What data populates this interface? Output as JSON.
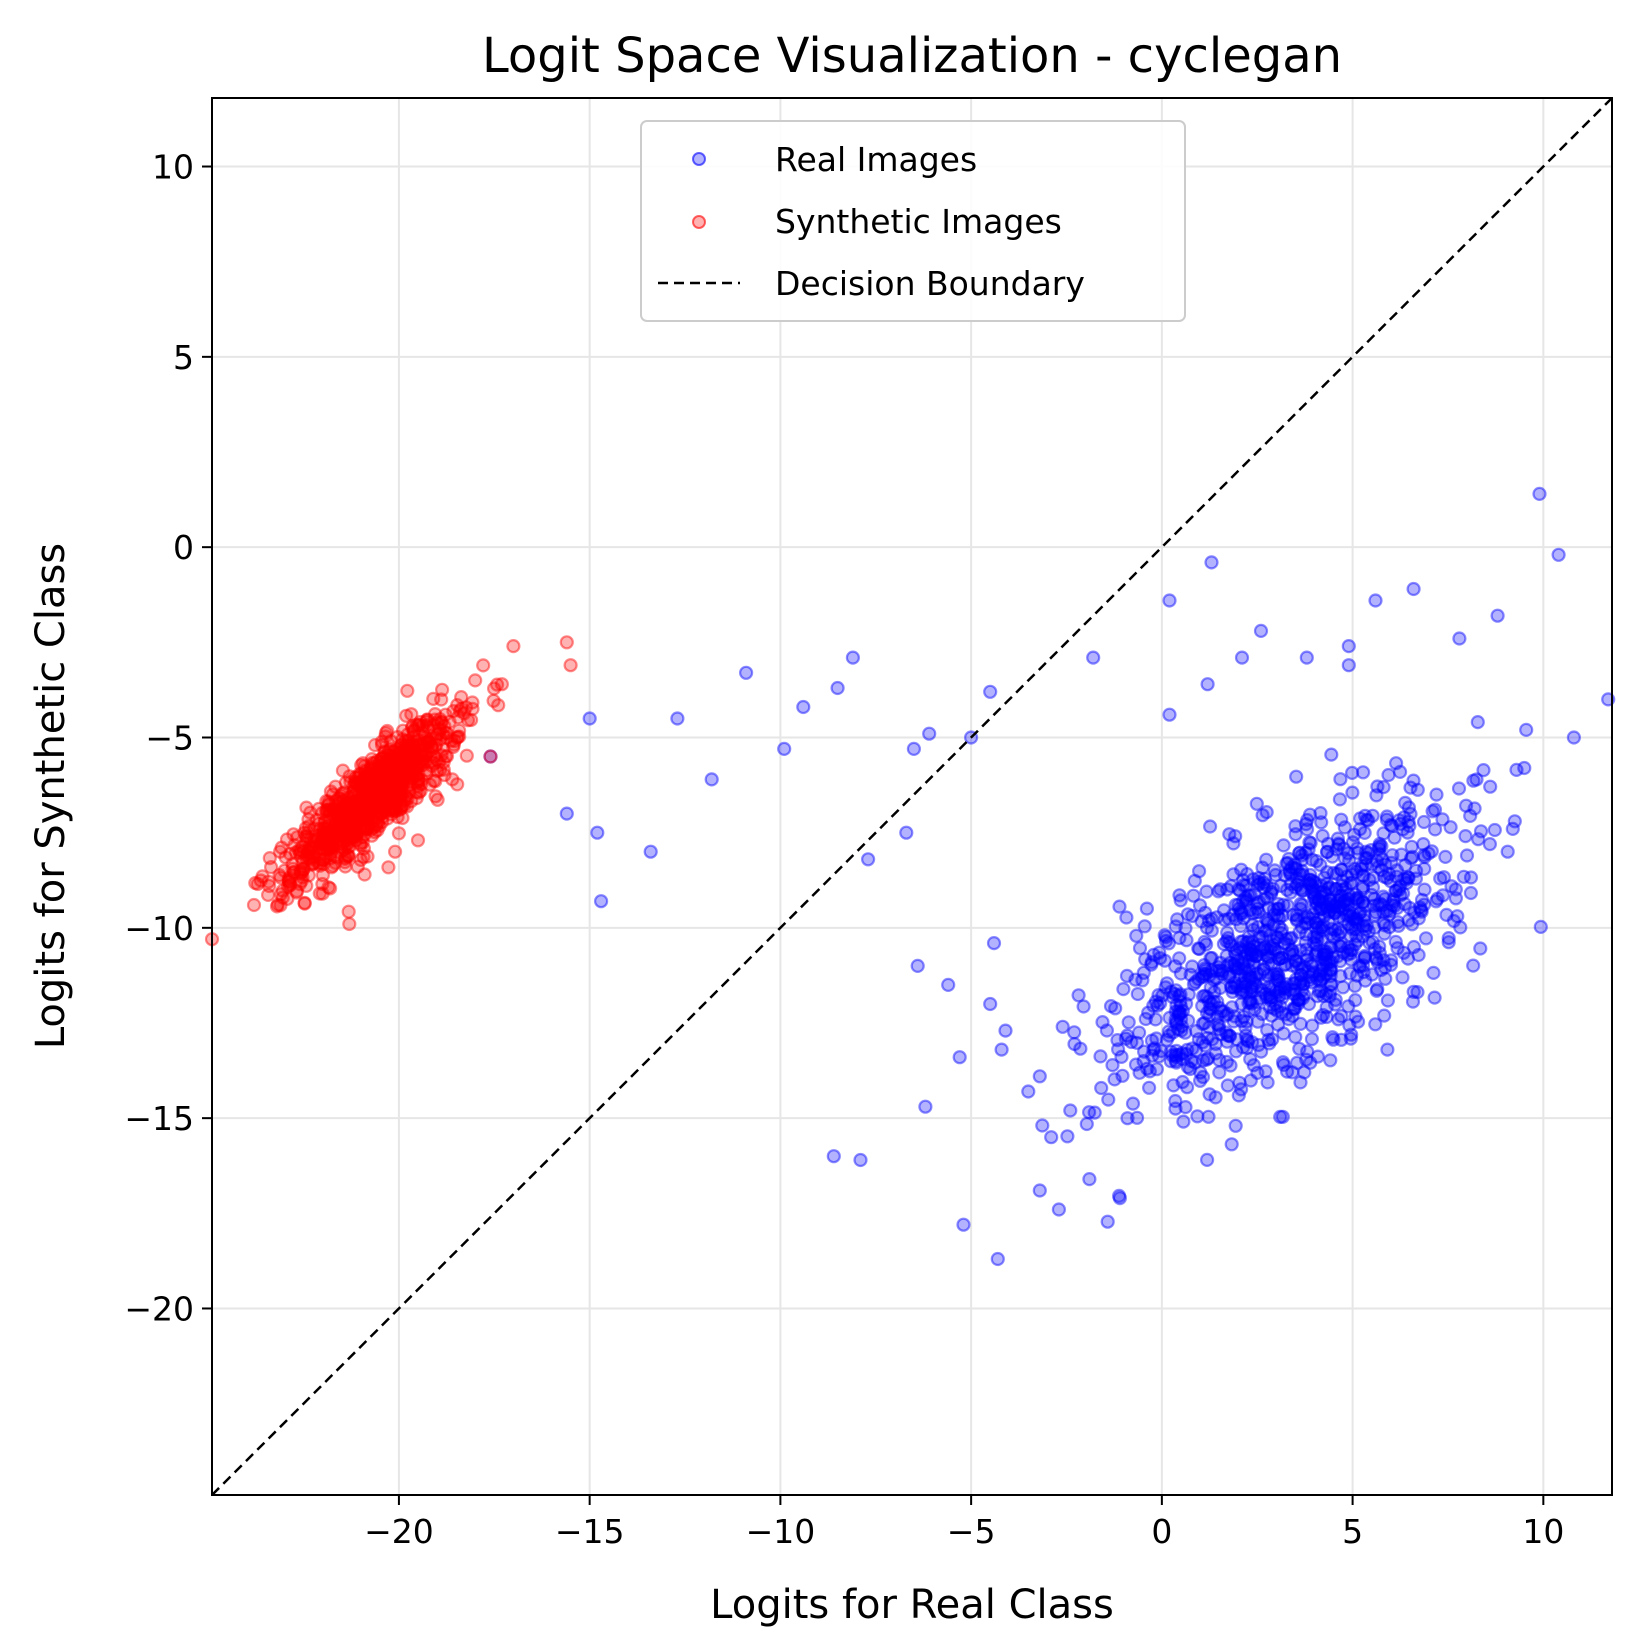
{
  "chart_data": {
    "type": "scatter",
    "title": "Logit Space Visualization - cyclegan",
    "xlabel": "Logits for Real Class",
    "ylabel": "Logits for Synthetic Class",
    "xlim": [
      -24.9,
      11.8
    ],
    "ylim": [
      -24.9,
      11.8
    ],
    "xticks": [
      -20,
      -15,
      -10,
      -5,
      0,
      5,
      10
    ],
    "yticks": [
      -20,
      -15,
      -10,
      -5,
      0,
      5,
      10
    ],
    "xtick_labels": [
      "−20",
      "−15",
      "−10",
      "−5",
      "0",
      "5",
      "10"
    ],
    "ytick_labels": [
      "−20",
      "−15",
      "−10",
      "−5",
      "0",
      "5",
      "10"
    ],
    "grid": true,
    "legend_position": "upper center",
    "series": [
      {
        "name": "Real Images",
        "color": "#0000ff",
        "marker": "circle",
        "alpha": 0.3,
        "x": [
          9.9,
          10.4,
          1.3,
          6.6,
          0.2,
          5.6,
          8.8,
          2.6,
          7.8,
          -1.8,
          1.2,
          2.1,
          3.8,
          4.9,
          10.8,
          11.7,
          0.2,
          -4.5,
          -5.0,
          -6.1,
          -6.5,
          -8.1,
          -8.5,
          -9.4,
          -10.9,
          -12.7,
          -15.0,
          -11.8,
          -9.9,
          -15.6,
          -14.8,
          -13.4,
          -14.7,
          -6.7,
          -7.7,
          -17.6,
          -4.3,
          -5.2,
          -5.6,
          -6.4,
          -4.5,
          -3.2,
          -2.7,
          -1.9,
          -1.1,
          -0.9,
          -6.2,
          -8.6,
          -7.9,
          -5.3,
          -4.2,
          -3.5,
          -3.2,
          -2.9,
          -2.4,
          -0.8,
          -2.6,
          -4.1,
          -4.4,
          0.5,
          1.5,
          2.0,
          2.6,
          3.3,
          4.4,
          5.3,
          6.0,
          7.2,
          8.0,
          9.2,
          4.9,
          8.6,
          9.5
        ],
        "y": [
          1.4,
          -0.2,
          -0.4,
          -1.1,
          -1.4,
          -1.4,
          -1.8,
          -2.2,
          -2.4,
          -2.9,
          -3.6,
          -2.9,
          -2.9,
          -2.6,
          -5.0,
          -4.0,
          -4.4,
          -3.8,
          -5.0,
          -4.9,
          -5.3,
          -2.9,
          -3.7,
          -4.2,
          -3.3,
          -4.5,
          -4.5,
          -6.1,
          -5.3,
          -7.0,
          -7.5,
          -8.0,
          -9.3,
          -7.5,
          -8.2,
          -5.5,
          -18.7,
          -17.8,
          -11.5,
          -11.0,
          -12.0,
          -16.9,
          -17.4,
          -16.6,
          -17.1,
          -15.0,
          -14.7,
          -16.0,
          -16.1,
          -13.4,
          -13.2,
          -14.3,
          -13.9,
          -15.5,
          -14.8,
          -13.0,
          -12.6,
          -12.7,
          -10.4,
          -11.2,
          -12.1,
          -9.4,
          -10.6,
          -8.3,
          -11.8,
          -9.8,
          -7.3,
          -6.5,
          -8.1,
          -7.4,
          -3.1,
          -7.8,
          -5.8
        ]
      },
      {
        "name": "Synthetic Images",
        "color": "#ff0000",
        "marker": "circle",
        "alpha": 0.3,
        "x": [
          -24.9,
          -17.0,
          -17.3,
          -15.6,
          -15.5,
          -17.6,
          -18.0,
          -18.4,
          -18.9,
          -19.3,
          -19.8,
          -20.3,
          -20.7,
          -21.2,
          -21.6,
          -22.0,
          -22.5,
          -23.0,
          -23.4,
          -23.8,
          -22.0,
          -20.9,
          -19.5,
          -18.6,
          -21.3,
          -20.1
        ],
        "y": [
          -10.3,
          -2.6,
          -3.6,
          -2.5,
          -3.1,
          -5.5,
          -3.5,
          -4.3,
          -4.6,
          -5.0,
          -5.4,
          -5.9,
          -6.3,
          -6.7,
          -7.1,
          -7.6,
          -8.0,
          -8.5,
          -8.9,
          -9.4,
          -9.1,
          -8.6,
          -7.7,
          -6.1,
          -9.9,
          -8.0
        ]
      }
    ],
    "reference_line": {
      "name": "Decision Boundary",
      "style": "dashed",
      "color": "#000000",
      "equation": "y = x"
    }
  }
}
